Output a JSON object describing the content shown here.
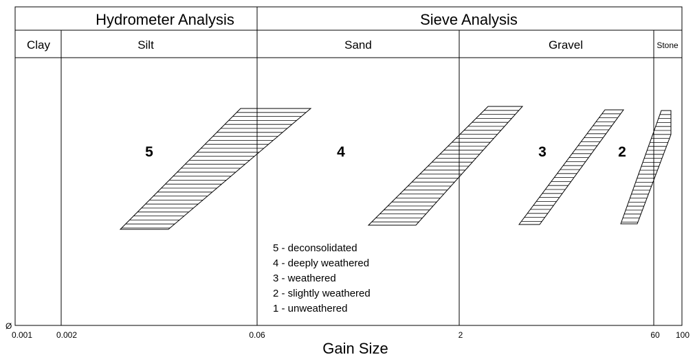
{
  "header": {
    "top": [
      {
        "label": "Hydrometer Analysis"
      },
      {
        "label": "Sieve Analysis"
      }
    ],
    "classes": [
      {
        "label": "Clay"
      },
      {
        "label": "Silt"
      },
      {
        "label": "Sand"
      },
      {
        "label": "Gravel"
      },
      {
        "label": "Stone"
      }
    ]
  },
  "axis": {
    "origin_symbol": "Ø",
    "ticks": [
      "0.001",
      "0.002",
      "0.06",
      "2",
      "60",
      "100"
    ],
    "xlabel": "Gain Size"
  },
  "bands": [
    {
      "number": "5"
    },
    {
      "number": "4"
    },
    {
      "number": "3"
    },
    {
      "number": "2"
    }
  ],
  "legend": [
    "5 - deconsolidated",
    "4 - deeply weathered",
    "3 - weathered",
    "2 - slightly weathered",
    "1 - unweathered"
  ]
}
